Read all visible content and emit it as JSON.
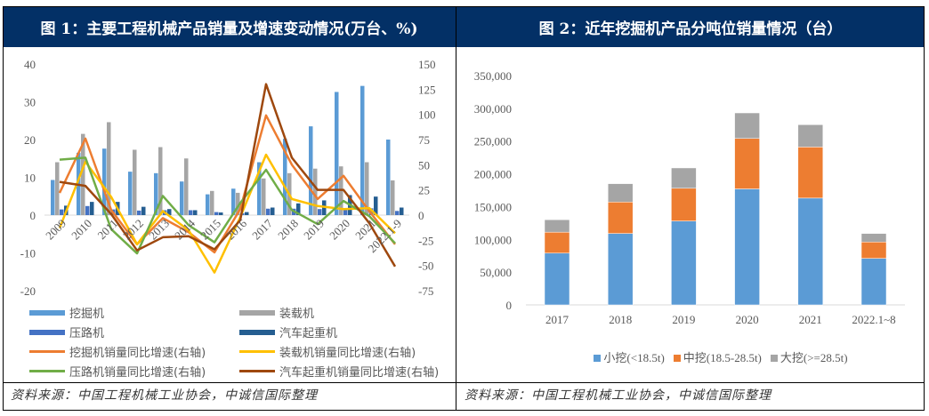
{
  "header": {
    "left_title": "图 1：主要工程机械产品销量及增速变动情况(万台、%)",
    "right_title": "图 2：近年挖掘机产品分吨位销量情况（台）"
  },
  "footer": {
    "left_source": "资料来源：中国工程机械工业协会，中诚信国际整理",
    "right_source": "资料来源：中国工程机械工业协会，中诚信国际整理"
  },
  "chart_data": [
    {
      "type": "bar+line",
      "title": "图 1：主要工程机械产品销量及增速变动情况(万台、%)",
      "categories": [
        "2009",
        "2010",
        "2011",
        "2012",
        "2013",
        "2014",
        "2015",
        "2016",
        "2017",
        "2018",
        "2019",
        "2020",
        "2021",
        "2022.1-9"
      ],
      "ylim_left": [
        -20,
        40
      ],
      "yticks_left": [
        "-20",
        "-10",
        "0",
        "10",
        "20",
        "30",
        "40"
      ],
      "ylim_right": [
        -75,
        150
      ],
      "yticks_right": [
        "-75",
        "-50",
        "-25",
        "0",
        "25",
        "50",
        "75",
        "100",
        "125",
        "150"
      ],
      "grid": false,
      "legend_position": "bottom",
      "bar_series": [
        {
          "name": "挖掘机",
          "color": "#5B9BD5",
          "values": [
            9.3,
            16.5,
            17.6,
            11.5,
            11.1,
            8.9,
            5.5,
            7.0,
            14.0,
            20.2,
            23.5,
            32.6,
            34.2,
            20.0
          ]
        },
        {
          "name": "装载机",
          "color": "#A5A5A5",
          "values": [
            14.0,
            21.5,
            24.6,
            17.3,
            18.0,
            15.0,
            6.4,
            5.9,
            9.7,
            11.1,
            12.3,
            12.9,
            14.0,
            9.2
          ]
        },
        {
          "name": "压路机",
          "color": "#4472C4",
          "values": [
            1.5,
            2.4,
            1.5,
            1.2,
            1.3,
            1.3,
            0.8,
            0.5,
            1.7,
            1.7,
            1.6,
            1.6,
            1.8,
            1.1
          ]
        },
        {
          "name": "汽车起重机",
          "color": "#255E91",
          "values": [
            2.5,
            3.5,
            3.5,
            2.2,
            1.6,
            1.3,
            0.7,
            0.8,
            2.0,
            3.1,
            3.9,
            5.3,
            4.9,
            2.0
          ]
        }
      ],
      "line_series": [
        {
          "name": "挖掘机销量同比增速(右轴)",
          "color": "#ED7D31",
          "values": [
            22,
            76,
            5,
            -29,
            -3,
            -17,
            -37,
            6,
            99,
            50,
            16,
            39,
            4,
            -29
          ]
        },
        {
          "name": "装载机销量同比增速(右轴)",
          "color": "#FFC000",
          "values": [
            -13,
            53,
            18,
            -29,
            4,
            -15,
            -57,
            -2,
            60,
            16,
            9,
            6,
            7,
            -18
          ]
        },
        {
          "name": "压路机销量同比增速(右轴)",
          "color": "#70AD47",
          "values": [
            55,
            57,
            -14,
            -38,
            19,
            -10,
            -27,
            12,
            45,
            5,
            -9,
            14,
            -1,
            -28
          ]
        },
        {
          "name": "汽车起重机销量同比增速(右轴)",
          "color": "#9E480E",
          "values": [
            33,
            29,
            1,
            -35,
            -22,
            -21,
            -34,
            -5,
            130,
            57,
            25,
            25,
            -8,
            -51
          ]
        }
      ]
    },
    {
      "type": "bar",
      "stacked": true,
      "title": "图 2：近年挖掘机产品分吨位销量情况（台）",
      "categories": [
        "2017",
        "2018",
        "2019",
        "2020",
        "2021",
        "2022.1~8"
      ],
      "ylim": [
        0,
        350000
      ],
      "yticks": [
        "0",
        "50,000",
        "100,000",
        "150,000",
        "200,000",
        "250,000",
        "300,000",
        "350,000"
      ],
      "grid": false,
      "legend_position": "bottom",
      "series": [
        {
          "name": "小挖(<18.5t)",
          "color": "#5B9BD5",
          "values": [
            79000,
            109000,
            128000,
            177000,
            163000,
            71000
          ]
        },
        {
          "name": "中挖(18.5-28.5t)",
          "color": "#ED7D31",
          "values": [
            32000,
            48000,
            50000,
            77000,
            78000,
            25000
          ]
        },
        {
          "name": "大挖(>=28.5t)",
          "color": "#A5A5A5",
          "values": [
            19000,
            28000,
            31000,
            39000,
            34000,
            13000
          ]
        }
      ]
    }
  ]
}
